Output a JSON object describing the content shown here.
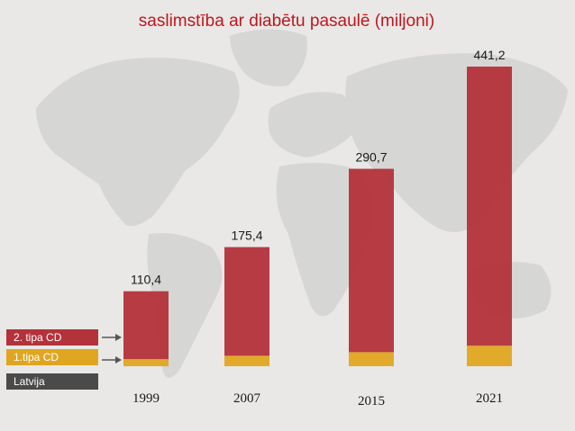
{
  "chart_data": {
    "type": "bar",
    "stacked": true,
    "title": "saslimstība ar diabētu pasaulē (miljoni)",
    "categories": [
      "1999",
      "2007",
      "2015",
      "2021"
    ],
    "totals": [
      110.4,
      175.4,
      290.7,
      441.2
    ],
    "total_labels": [
      "110,4",
      "175,4",
      "290,7",
      "441,2"
    ],
    "series": [
      {
        "name": "1.tipa CD",
        "values": [
          10.4,
          15.4,
          20.7,
          30.2
        ],
        "color": "#e0a621"
      },
      {
        "name": "2. tipa CD",
        "values": [
          100.0,
          160.0,
          270.0,
          411.0
        ],
        "color": "#b4323a"
      }
    ],
    "extra_legend": {
      "name": "Latvija",
      "color": "#4a4a4a"
    },
    "ylim": [
      0,
      441.2
    ],
    "grid": false,
    "legend_position": "bottom-left",
    "title_color": "#c0161e",
    "background": "world map"
  }
}
